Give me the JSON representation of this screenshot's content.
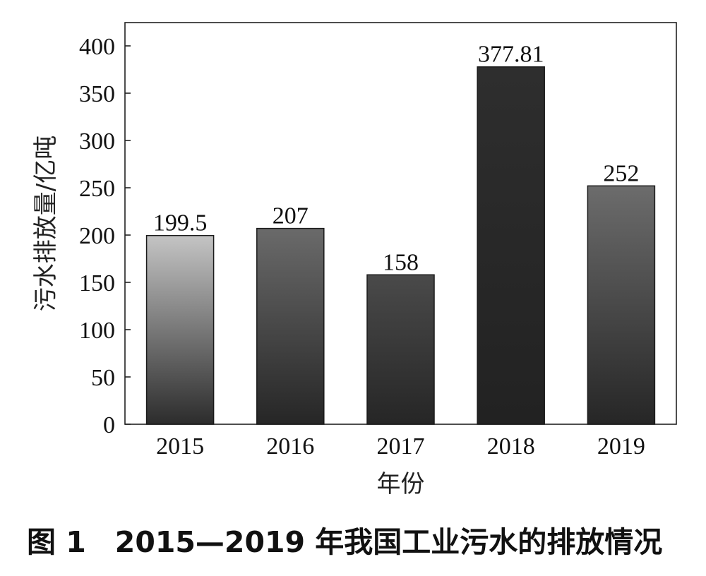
{
  "chart_data": {
    "type": "bar",
    "categories": [
      "2015",
      "2016",
      "2017",
      "2018",
      "2019"
    ],
    "values": [
      199.5,
      207,
      158,
      377.81,
      252
    ],
    "value_labels": [
      "199.5",
      "207",
      "158",
      "377.81",
      "252"
    ],
    "xlabel": "年份",
    "ylabel": "污水排放量/亿吨",
    "ylim": [
      0,
      400
    ],
    "yticks": [
      "0",
      "50",
      "100",
      "150",
      "200",
      "250",
      "300",
      "350",
      "400"
    ],
    "grid": false,
    "legend": "none",
    "bar_gradients": [
      [
        "#c4c4c4",
        "#2c2c2c"
      ],
      [
        "#6a6a6a",
        "#262626"
      ],
      [
        "#4a4a4a",
        "#262626"
      ],
      [
        "#2e2e2e",
        "#222222"
      ],
      [
        "#6c6c6c",
        "#262626"
      ]
    ]
  },
  "caption": "图 1　2015—2019 年我国工业污水的排放情况"
}
